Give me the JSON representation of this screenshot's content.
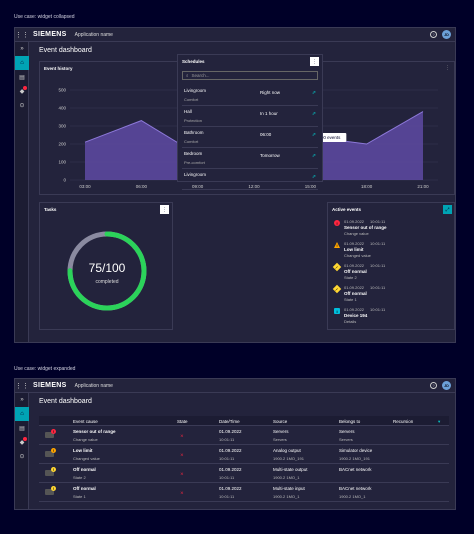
{
  "captions": {
    "collapsed": "Use case: widget collapsed",
    "expanded": "Use case: widget expanded"
  },
  "appbar": {
    "logo": "SIEMENS",
    "app_name": "Application name",
    "avatar": "JD"
  },
  "page_title": "Event dashboard",
  "history": {
    "title": "Event history",
    "tooltip": "390 events",
    "chart_data": {
      "type": "area",
      "title": "Event history",
      "x": [
        "03:00",
        "06:00",
        "09:00",
        "12:00",
        "15:00",
        "18:00",
        "21:00"
      ],
      "values": [
        210,
        330,
        140,
        60,
        240,
        200,
        380
      ],
      "ylim": [
        0,
        500
      ],
      "yticks": [
        0,
        100,
        200,
        300,
        400,
        500
      ],
      "color": "#5e4aa3",
      "line_color": "#8c78d8",
      "grid": true
    }
  },
  "tasks": {
    "title": "Tasks",
    "value": "75/100",
    "label": "completed",
    "progress": 0.75,
    "color": "#2bd35a"
  },
  "schedules": {
    "title": "Schedules",
    "search_placeholder": "Search...",
    "items": [
      {
        "name": "Livingroom",
        "sub": "Comfort",
        "when": "Right now"
      },
      {
        "name": "Hall",
        "sub": "Protection",
        "when": "In 1 hour"
      },
      {
        "name": "Bathroom",
        "sub": "Comfort",
        "when": "06:00"
      },
      {
        "name": "Bedroom",
        "sub": "Pre-comfort",
        "when": "Tomorrow"
      },
      {
        "name": "Livingroom",
        "sub": "",
        "when": ""
      }
    ]
  },
  "active_events": {
    "title": "Active events",
    "items": [
      {
        "date": "01.09.2022",
        "time": "10:01:11",
        "title": "Sensor out of range",
        "sub": "Change value",
        "icon": "!",
        "color": "#ff2640"
      },
      {
        "date": "01.09.2022",
        "time": "10:01:11",
        "title": "Low limit",
        "sub": "Changed value",
        "icon": "!",
        "color": "#ffa500"
      },
      {
        "date": "01.09.2022",
        "time": "10:01:11",
        "title": "Off normal",
        "sub": "State 2",
        "icon": "!",
        "color": "#ffd732"
      },
      {
        "date": "01.09.2022",
        "time": "10:01:11",
        "title": "Off normal",
        "sub": "State 1",
        "icon": "!",
        "color": "#ffd732"
      },
      {
        "date": "01.09.2022",
        "time": "10:01:11",
        "title": "Device 194",
        "sub": "Details",
        "icon": "i",
        "color": "#00bedc"
      }
    ]
  },
  "table": {
    "headers": [
      "Event cause",
      "State",
      "Date/Time",
      "Source",
      "Belongs to",
      "Recursion"
    ],
    "rows": [
      {
        "cause": "Sensor out of range",
        "cause_sub": "Change value",
        "date": "01.09.2022",
        "time": "10:01:11",
        "source": "Servers",
        "source_sub": "Servers",
        "belongs": "Servers",
        "belongs_sub": "Servers",
        "color": "#ff2640",
        "icon": "!"
      },
      {
        "cause": "Low limit",
        "cause_sub": "Changed value",
        "date": "01.09.2022",
        "time": "10:01:11",
        "source": "Analog output",
        "source_sub": "1900.2 1MO_191",
        "belongs": "Simulator device",
        "belongs_sub": "1900.2 1MO_191",
        "color": "#ffa500",
        "icon": "!"
      },
      {
        "cause": "Off normal",
        "cause_sub": "State 2",
        "date": "01.09.2022",
        "time": "10:01:11",
        "source": "Multi-state output",
        "source_sub": "1900.2 1MO_1",
        "belongs": "BACnet network",
        "belongs_sub": "",
        "color": "#ffd732",
        "icon": "!"
      },
      {
        "cause": "Off normal",
        "cause_sub": "State 1",
        "date": "01.09.2022",
        "time": "10:01:11",
        "source": "Multi-state input",
        "source_sub": "1900.2 1MO_1",
        "belongs": "BACnet network",
        "belongs_sub": "1900.2 1MO_1",
        "color": "#ffd732",
        "icon": "!"
      }
    ]
  }
}
